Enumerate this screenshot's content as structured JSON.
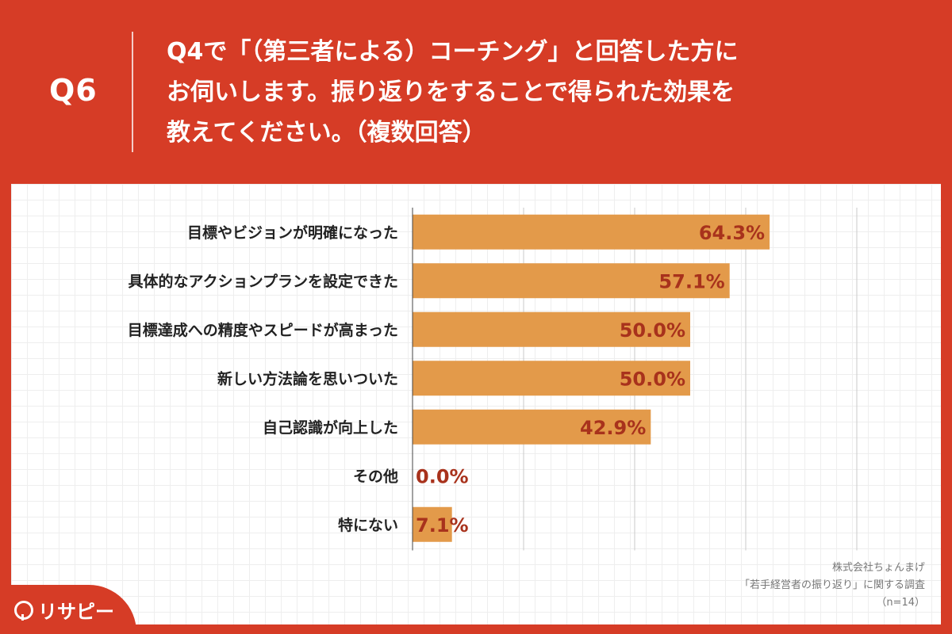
{
  "header": {
    "question_id": "Q6",
    "question_lines": [
      "Q4で「（第三者による）コーチング」と回答した方に",
      "お伺いします。振り返りをすることで得られた効果を",
      "教えてください。（複数回答）"
    ]
  },
  "chart_data": {
    "type": "bar",
    "orientation": "horizontal",
    "categories": [
      "目標やビジョンが明確になった",
      "具体的なアクションプランを設定できた",
      "目標達成への精度やスピードが高まった",
      "新しい方法論を思いついた",
      "自己認識が向上した",
      "その他",
      "特にない"
    ],
    "values": [
      64.3,
      57.1,
      50.0,
      50.0,
      42.9,
      0.0,
      7.1
    ],
    "value_labels": [
      "64.3%",
      "57.1%",
      "50.0%",
      "50.0%",
      "42.9%",
      "0.0%",
      "7.1%"
    ],
    "xlim": [
      0,
      100
    ],
    "grid": true,
    "bar_color": "#e39a4a",
    "label_color": "#a8321c"
  },
  "source": {
    "company": "株式会社ちょんまげ",
    "survey": "「若手経営者の振り返り」に関する調査",
    "sample": "（n=14）"
  },
  "brand": {
    "logo_text": "リサピー"
  },
  "colors": {
    "background": "#d63c26",
    "panel": "#ffffff"
  }
}
